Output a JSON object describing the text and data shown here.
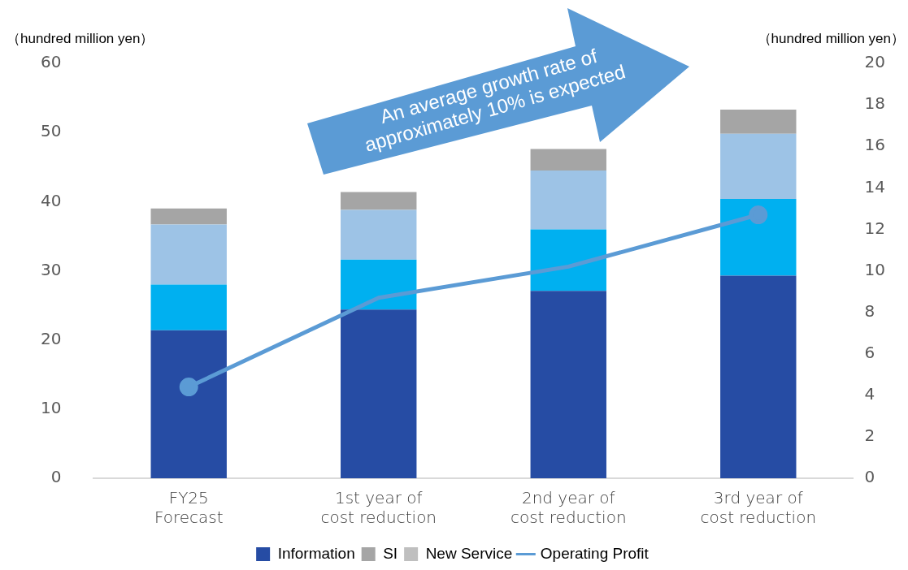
{
  "chart_data": {
    "type": "bar",
    "stacked": true,
    "ylabel": "（hundred million yen）",
    "y2label": "（hundred million yen）",
    "categories": [
      "FY25\nForecast",
      "1st year of\ncost reduction",
      "2nd year of\ncost reduction",
      "3rd year of\ncost reduction"
    ],
    "series": [
      {
        "name": "Information",
        "color": "#264ca4",
        "values": [
          21.4,
          24.4,
          27.1,
          29.3
        ]
      },
      {
        "color": "#00b0f0",
        "values": [
          6.6,
          7.2,
          8.9,
          11.1
        ]
      },
      {
        "color": "#9dc3e6",
        "values": [
          8.7,
          7.2,
          8.5,
          9.4
        ]
      },
      {
        "name": "SI",
        "color": "#a5a5a5",
        "values": [
          2.3,
          2.6,
          3.1,
          3.5
        ]
      },
      {
        "name": "New Service",
        "color": "#bfbfbf",
        "values": [
          null,
          null,
          null,
          null
        ]
      },
      {
        "name": "Operating Profit",
        "type": "line",
        "axis": "y2",
        "color": "#5b9bd5",
        "marker": "circle",
        "values": [
          4.4,
          8.7,
          10.2,
          12.7
        ]
      }
    ],
    "ylim": [
      0,
      60
    ],
    "yticks": [
      0,
      10,
      20,
      30,
      40,
      50,
      60
    ],
    "y2lim": [
      0,
      20
    ],
    "y2ticks": [
      0,
      2,
      4,
      6,
      8,
      10,
      12,
      14,
      16,
      18,
      20
    ],
    "grid": false,
    "legend": "bottom",
    "annotations": [
      "An average growth rate of approximately 10% is expected"
    ]
  }
}
